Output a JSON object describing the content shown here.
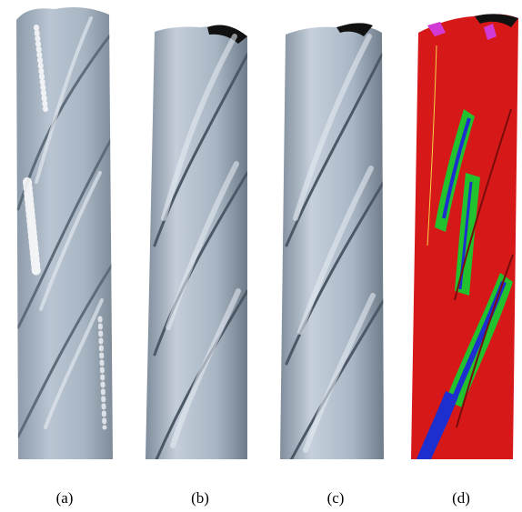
{
  "panels": [
    {
      "caption": "(a)",
      "style": "raw-scan",
      "surface_color": "#a9b6c4"
    },
    {
      "caption": "(b)",
      "style": "smooth",
      "surface_color": "#a7b4c2"
    },
    {
      "caption": "(c)",
      "style": "smooth",
      "surface_color": "#a9b6c5"
    },
    {
      "caption": "(d)",
      "style": "segmented",
      "surface_color": "#d61818"
    }
  ],
  "colors": {
    "background": "#ffffff",
    "segment_red": "#d61818",
    "segment_green": "#22c12e",
    "segment_blue": "#1e2fd0",
    "segment_magenta": "#d23ad6",
    "tip_black": "#111111"
  }
}
